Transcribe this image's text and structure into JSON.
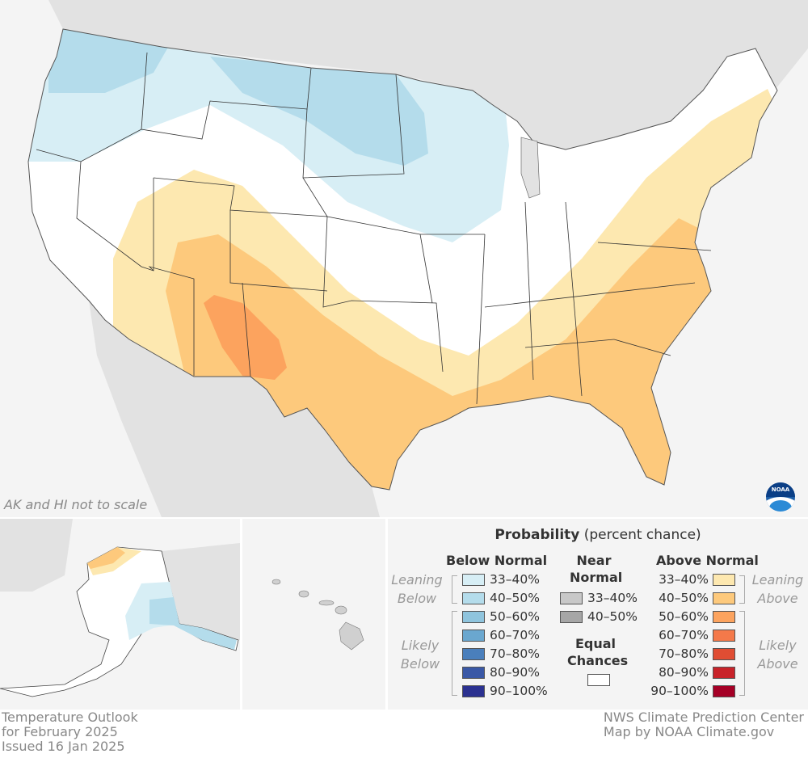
{
  "map": {
    "note": "AK and HI not to scale",
    "logo": "NOAA",
    "colors": {
      "land": "#e2e2e2",
      "ocean": "#f4f4f4",
      "equal": "#ffffff"
    }
  },
  "legend": {
    "title_bold": "Probability",
    "title_rest": " (percent chance)",
    "below_header": "Below Normal",
    "near_header_1": "Near",
    "near_header_2": "Normal",
    "above_header": "Above Normal",
    "equal_1": "Equal",
    "equal_2": "Chances",
    "leaning_below_1": "Leaning",
    "leaning_below_2": "Below",
    "likely_below_1": "Likely",
    "likely_below_2": "Below",
    "leaning_above_1": "Leaning",
    "leaning_above_2": "Above",
    "likely_above_1": "Likely",
    "likely_above_2": "Above",
    "below": [
      {
        "label": "33–40%",
        "color": "#d7eef5"
      },
      {
        "label": "40–50%",
        "color": "#b4dceb"
      },
      {
        "label": "50–60%",
        "color": "#8fc4dd"
      },
      {
        "label": "60–70%",
        "color": "#6aa7cf"
      },
      {
        "label": "70–80%",
        "color": "#4a7fbc"
      },
      {
        "label": "80–90%",
        "color": "#3a58a6"
      },
      {
        "label": "90–100%",
        "color": "#2b3190"
      }
    ],
    "near": [
      {
        "label": "33–40%",
        "color": "#c8c8c8"
      },
      {
        "label": "40–50%",
        "color": "#a6a6a6"
      }
    ],
    "above": [
      {
        "label": "33–40%",
        "color": "#fde8b0"
      },
      {
        "label": "40–50%",
        "color": "#fdc97c"
      },
      {
        "label": "50–60%",
        "color": "#fca35e"
      },
      {
        "label": "60–70%",
        "color": "#f4794a"
      },
      {
        "label": "70–80%",
        "color": "#e04d33"
      },
      {
        "label": "80–90%",
        "color": "#c8232a"
      },
      {
        "label": "90–100%",
        "color": "#a50026"
      }
    ]
  },
  "footer": {
    "left": [
      "Temperature Outlook",
      "for February 2025",
      "Issued 16 Jan 2025"
    ],
    "right": [
      "NWS Climate Prediction Center",
      "Map by NOAA Climate.gov"
    ]
  }
}
